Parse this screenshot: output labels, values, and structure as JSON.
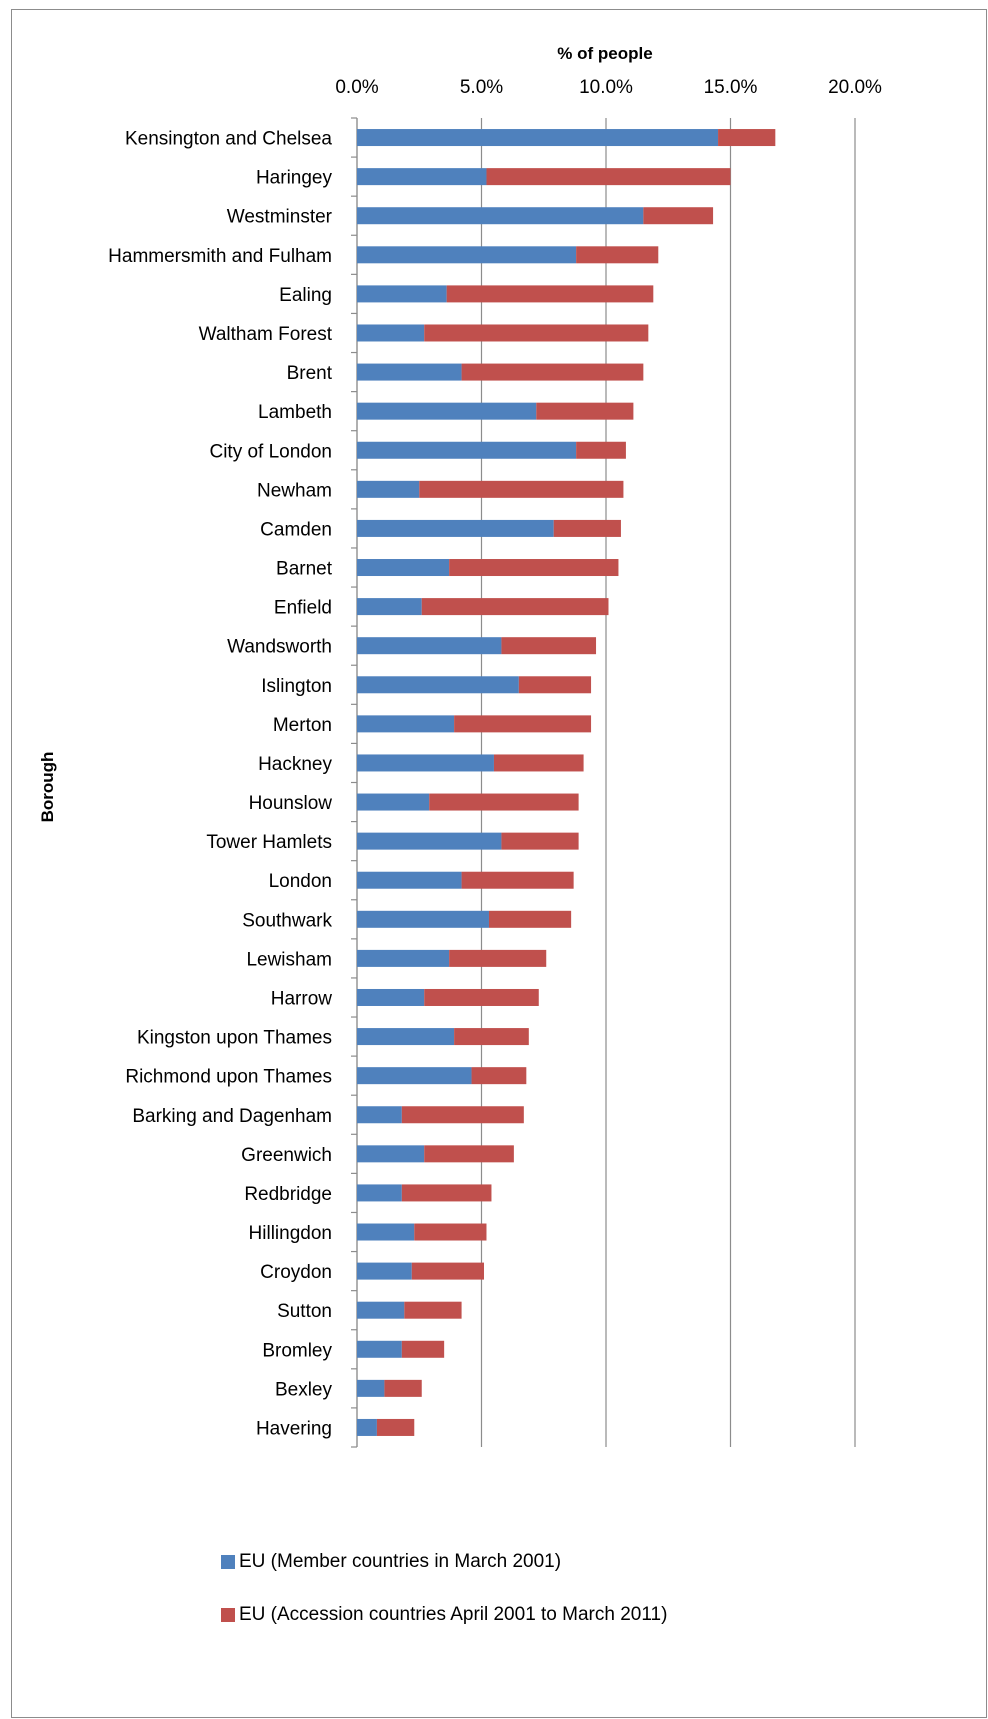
{
  "chart_data": {
    "type": "bar",
    "orientation": "horizontal",
    "stacked": true,
    "xlabel": "% of people",
    "ylabel": "Borough",
    "xlim": [
      0,
      20
    ],
    "x_ticks": [
      "0.0%",
      "5.0%",
      "10.0%",
      "15.0%",
      "20.0%"
    ],
    "grid": true,
    "legend_position": "bottom",
    "categories": [
      "Kensington and Chelsea",
      "Haringey",
      "Westminster",
      "Hammersmith and Fulham",
      "Ealing",
      "Waltham Forest",
      "Brent",
      "Lambeth",
      "City of London",
      "Newham",
      "Camden",
      "Barnet",
      "Enfield",
      "Wandsworth",
      "Islington",
      "Merton",
      "Hackney",
      "Hounslow",
      "Tower Hamlets",
      "London",
      "Southwark",
      "Lewisham",
      "Harrow",
      "Kingston upon Thames",
      "Richmond upon Thames",
      "Barking and Dagenham",
      "Greenwich",
      "Redbridge",
      "Hillingdon",
      "Croydon",
      "Sutton",
      "Bromley",
      "Bexley",
      "Havering"
    ],
    "series": [
      {
        "name": "EU (Member countries in March 2001)",
        "color": "#4f81bd",
        "values": [
          14.5,
          5.2,
          11.5,
          8.8,
          3.6,
          2.7,
          4.2,
          7.2,
          8.8,
          2.5,
          7.9,
          3.7,
          2.6,
          5.8,
          6.5,
          3.9,
          5.5,
          2.9,
          5.8,
          4.2,
          5.3,
          3.7,
          2.7,
          3.9,
          4.6,
          1.8,
          2.7,
          1.8,
          2.3,
          2.2,
          1.9,
          1.8,
          1.1,
          0.8
        ]
      },
      {
        "name": "EU (Accession countries April 2001 to March 2011)",
        "color": "#c0504d",
        "values": [
          2.3,
          9.8,
          2.8,
          3.3,
          8.3,
          9.0,
          7.3,
          3.9,
          2.0,
          8.2,
          2.7,
          6.8,
          7.5,
          3.8,
          2.9,
          5.5,
          3.6,
          6.0,
          3.1,
          4.5,
          3.3,
          3.9,
          4.6,
          3.0,
          2.2,
          4.9,
          3.6,
          3.6,
          2.9,
          2.9,
          2.3,
          1.7,
          1.5,
          1.5
        ]
      }
    ]
  }
}
